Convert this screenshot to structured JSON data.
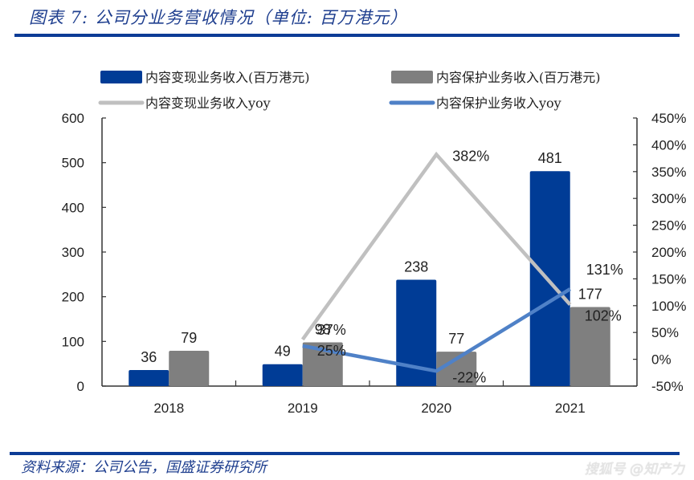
{
  "header": {
    "title": "图表 7:  公司分业务营收情况（单位:  百万港元）"
  },
  "footer": {
    "source": "资料来源：公司公告，国盛证券研究所",
    "watermark": "搜狐号 @知产力"
  },
  "chart_data": {
    "type": "bar+line",
    "title": "公司分业务营收情况（单位：百万港元）",
    "categories": [
      "2018",
      "2019",
      "2020",
      "2021"
    ],
    "series": [
      {
        "name": "内容变现业务收入(百万港元)",
        "type": "bar",
        "axis": "left",
        "color": "#003c96",
        "values": [
          36,
          49,
          238,
          481
        ],
        "labels": [
          "36",
          "49",
          "238",
          "481"
        ]
      },
      {
        "name": "内容保护业务收入(百万港元)",
        "type": "bar",
        "axis": "left",
        "color": "#7f7f7f",
        "values": [
          79,
          98,
          77,
          177
        ],
        "labels": [
          "79",
          "98",
          "77",
          "177"
        ]
      },
      {
        "name": "内容变现业务收入yoy",
        "type": "line",
        "axis": "right",
        "color": "#c0c0c0",
        "values": [
          null,
          37,
          382,
          102
        ],
        "labels": [
          "",
          "37%",
          "382%",
          "102%"
        ]
      },
      {
        "name": "内容保护业务收入yoy",
        "type": "line",
        "axis": "right",
        "color": "#4f81c7",
        "values": [
          null,
          25,
          -22,
          131
        ],
        "labels": [
          "",
          "25%",
          "-22%",
          "131%"
        ]
      }
    ],
    "y_left": {
      "min": 0,
      "max": 600,
      "step": 100,
      "ticks": [
        "0",
        "100",
        "200",
        "300",
        "400",
        "500",
        "600"
      ]
    },
    "y_right": {
      "min": -50,
      "max": 450,
      "step": 50,
      "ticks": [
        "-50%",
        "0%",
        "50%",
        "100%",
        "150%",
        "200%",
        "250%",
        "300%",
        "350%",
        "400%",
        "450%"
      ]
    },
    "legend": {
      "position": "top",
      "items": [
        "内容变现业务收入(百万港元)",
        "内容保护业务收入(百万港元)",
        "内容变现业务收入yoy",
        "内容保护业务收入yoy"
      ]
    },
    "grid": false
  }
}
